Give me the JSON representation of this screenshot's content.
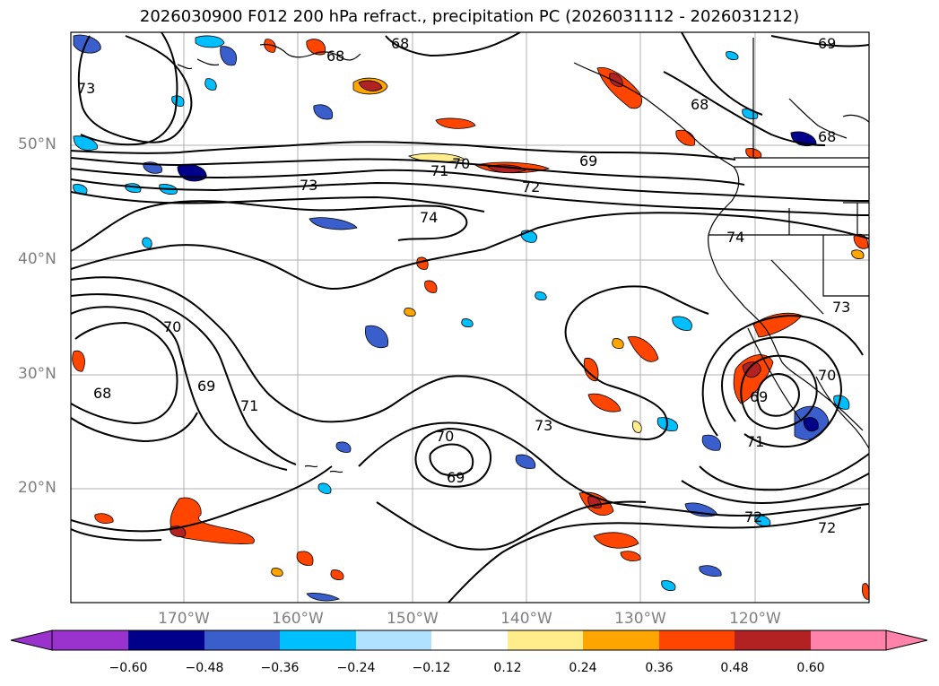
{
  "title": "2026030900 F012 200 hPa refract., precipitation PC (2026031112 - 2026031212)",
  "lat_labels": [
    "50°N",
    "40°N",
    "30°N",
    "20°N"
  ],
  "lon_labels": [
    "170°W",
    "160°W",
    "150°W",
    "140°W",
    "130°W",
    "120°W"
  ],
  "contour_labels": [
    "68",
    "68",
    "69",
    "70",
    "71",
    "72",
    "73",
    "74",
    "74",
    "73",
    "70",
    "69",
    "68",
    "71",
    "73",
    "70",
    "69",
    "72",
    "72",
    "69",
    "71",
    "70",
    "73",
    "68"
  ],
  "colorbar": {
    "ticks": [
      "−0.60",
      "−0.48",
      "−0.36",
      "−0.24",
      "−0.12",
      "0.12",
      "0.24",
      "0.36",
      "0.48",
      "0.60"
    ],
    "colors": [
      "#9a32cd",
      "#00008b",
      "#3a5fcd",
      "#00bfff",
      "#b0e2ff",
      "#ffffff",
      "#ffec8b",
      "#ffa500",
      "#ff4500",
      "#b22222",
      "#ff82ab"
    ]
  },
  "precip_colors": {
    "neg_1": "#b0e2ff",
    "neg_2": "#00bfff",
    "neg_3": "#3a5fcd",
    "neg_4": "#00008b",
    "pos_1": "#ffec8b",
    "pos_2": "#ffa500",
    "pos_3": "#ff4500",
    "pos_4": "#b22222"
  }
}
